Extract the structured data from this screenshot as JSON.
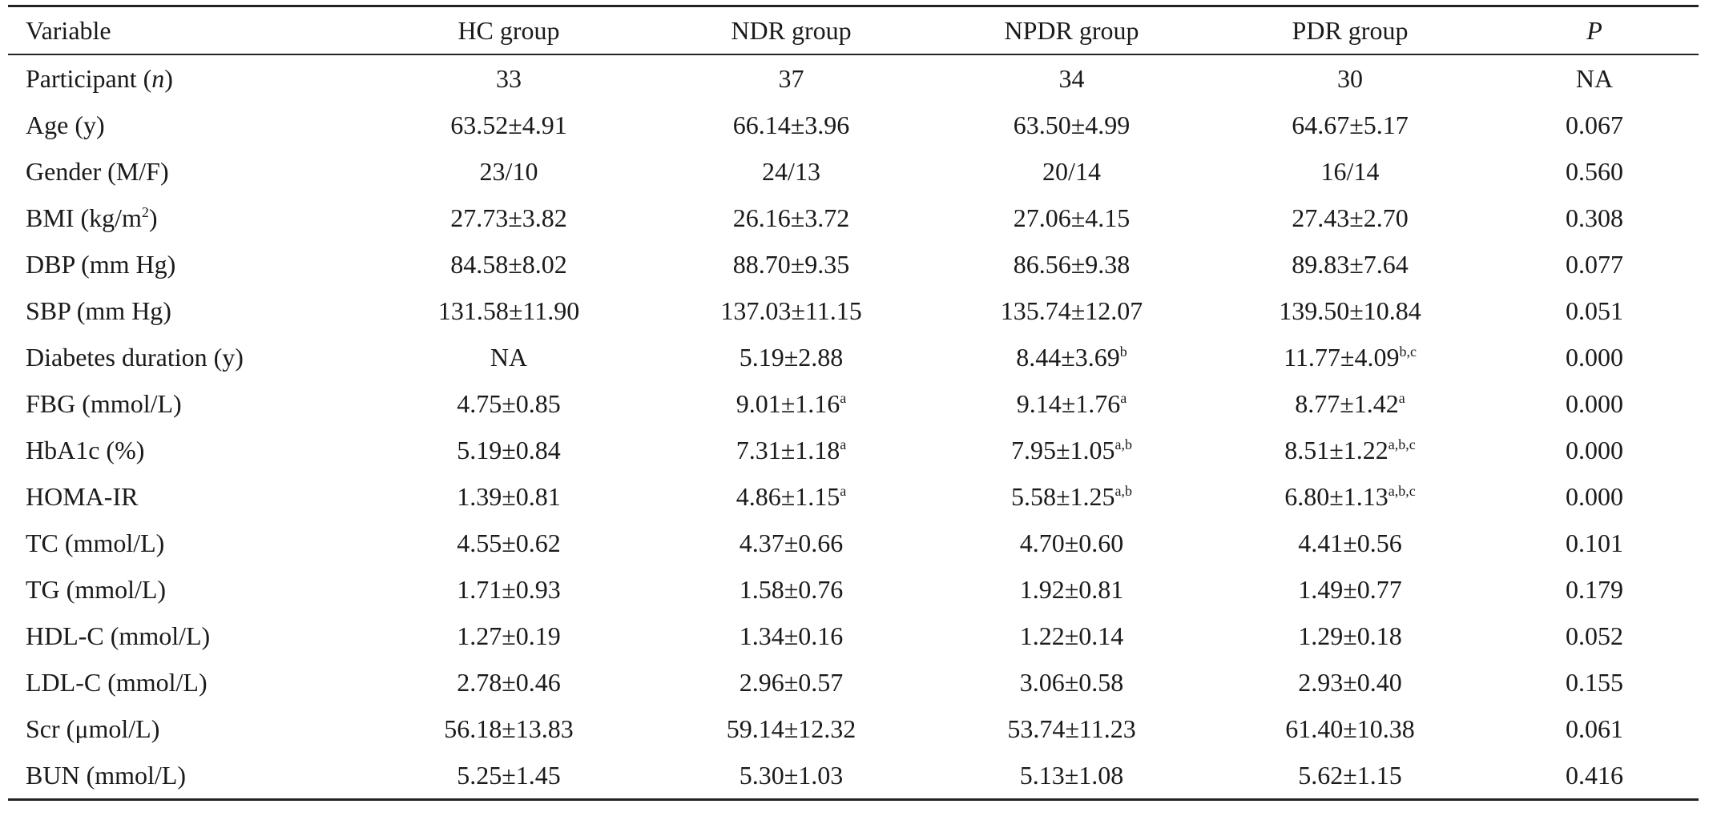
{
  "table": {
    "headers": [
      "Variable",
      "HC group",
      "NDR group",
      "NPDR group",
      "PDR group",
      "P"
    ],
    "rows": [
      {
        "variable": "Participant (",
        "variable_italic": "n",
        "variable_suffix": ")",
        "cells": [
          {
            "v": "33",
            "s": ""
          },
          {
            "v": "37",
            "s": ""
          },
          {
            "v": "34",
            "s": ""
          },
          {
            "v": "30",
            "s": ""
          }
        ],
        "p": "NA"
      },
      {
        "variable": "Age (y)",
        "cells": [
          {
            "v": "63.52±4.91",
            "s": ""
          },
          {
            "v": "66.14±3.96",
            "s": ""
          },
          {
            "v": "63.50±4.99",
            "s": ""
          },
          {
            "v": "64.67±5.17",
            "s": ""
          }
        ],
        "p": "0.067"
      },
      {
        "variable": "Gender (M/F)",
        "cells": [
          {
            "v": "23/10",
            "s": ""
          },
          {
            "v": "24/13",
            "s": ""
          },
          {
            "v": "20/14",
            "s": ""
          },
          {
            "v": "16/14",
            "s": ""
          }
        ],
        "p": "0.560"
      },
      {
        "variable": "BMI (kg/m",
        "variable_sup": "2",
        "variable_suffix": ")",
        "cells": [
          {
            "v": "27.73±3.82",
            "s": ""
          },
          {
            "v": "26.16±3.72",
            "s": ""
          },
          {
            "v": "27.06±4.15",
            "s": ""
          },
          {
            "v": "27.43±2.70",
            "s": ""
          }
        ],
        "p": "0.308"
      },
      {
        "variable": "DBP (mm Hg)",
        "cells": [
          {
            "v": "84.58±8.02",
            "s": ""
          },
          {
            "v": "88.70±9.35",
            "s": ""
          },
          {
            "v": "86.56±9.38",
            "s": ""
          },
          {
            "v": "89.83±7.64",
            "s": ""
          }
        ],
        "p": "0.077"
      },
      {
        "variable": "SBP (mm Hg)",
        "cells": [
          {
            "v": "131.58±11.90",
            "s": ""
          },
          {
            "v": "137.03±11.15",
            "s": ""
          },
          {
            "v": "135.74±12.07",
            "s": ""
          },
          {
            "v": "139.50±10.84",
            "s": ""
          }
        ],
        "p": "0.051"
      },
      {
        "variable": "Diabetes duration (y)",
        "cells": [
          {
            "v": "NA",
            "s": ""
          },
          {
            "v": "5.19±2.88",
            "s": ""
          },
          {
            "v": "8.44±3.69",
            "s": "b"
          },
          {
            "v": "11.77±4.09",
            "s": "b,c"
          }
        ],
        "p": "0.000"
      },
      {
        "variable": "FBG (mmol/L)",
        "cells": [
          {
            "v": "4.75±0.85",
            "s": ""
          },
          {
            "v": "9.01±1.16",
            "s": "a"
          },
          {
            "v": "9.14±1.76",
            "s": "a"
          },
          {
            "v": "8.77±1.42",
            "s": "a"
          }
        ],
        "p": "0.000"
      },
      {
        "variable": "HbA1c (%)",
        "cells": [
          {
            "v": "5.19±0.84",
            "s": ""
          },
          {
            "v": "7.31±1.18",
            "s": "a"
          },
          {
            "v": "7.95±1.05",
            "s": "a,b"
          },
          {
            "v": "8.51±1.22",
            "s": "a,b,c"
          }
        ],
        "p": "0.000"
      },
      {
        "variable": "HOMA-IR",
        "cells": [
          {
            "v": "1.39±0.81",
            "s": ""
          },
          {
            "v": "4.86±1.15",
            "s": "a"
          },
          {
            "v": "5.58±1.25",
            "s": "a,b"
          },
          {
            "v": "6.80±1.13",
            "s": "a,b,c"
          }
        ],
        "p": "0.000"
      },
      {
        "variable": "TC (mmol/L)",
        "cells": [
          {
            "v": "4.55±0.62",
            "s": ""
          },
          {
            "v": "4.37±0.66",
            "s": ""
          },
          {
            "v": "4.70±0.60",
            "s": ""
          },
          {
            "v": "4.41±0.56",
            "s": ""
          }
        ],
        "p": "0.101"
      },
      {
        "variable": "TG (mmol/L)",
        "cells": [
          {
            "v": "1.71±0.93",
            "s": ""
          },
          {
            "v": "1.58±0.76",
            "s": ""
          },
          {
            "v": "1.92±0.81",
            "s": ""
          },
          {
            "v": "1.49±0.77",
            "s": ""
          }
        ],
        "p": "0.179"
      },
      {
        "variable": "HDL-C (mmol/L)",
        "cells": [
          {
            "v": "1.27±0.19",
            "s": ""
          },
          {
            "v": "1.34±0.16",
            "s": ""
          },
          {
            "v": "1.22±0.14",
            "s": ""
          },
          {
            "v": "1.29±0.18",
            "s": ""
          }
        ],
        "p": "0.052"
      },
      {
        "variable": "LDL-C (mmol/L)",
        "cells": [
          {
            "v": "2.78±0.46",
            "s": ""
          },
          {
            "v": "2.96±0.57",
            "s": ""
          },
          {
            "v": "3.06±0.58",
            "s": ""
          },
          {
            "v": "2.93±0.40",
            "s": ""
          }
        ],
        "p": "0.155"
      },
      {
        "variable": "Scr (μmol/L)",
        "cells": [
          {
            "v": "56.18±13.83",
            "s": ""
          },
          {
            "v": "59.14±12.32",
            "s": ""
          },
          {
            "v": "53.74±11.23",
            "s": ""
          },
          {
            "v": "61.40±10.38",
            "s": ""
          }
        ],
        "p": "0.061"
      },
      {
        "variable": "BUN (mmol/L)",
        "cells": [
          {
            "v": "5.25±1.45",
            "s": ""
          },
          {
            "v": "5.30±1.03",
            "s": ""
          },
          {
            "v": "5.13±1.08",
            "s": ""
          },
          {
            "v": "5.62±1.15",
            "s": ""
          }
        ],
        "p": "0.416"
      }
    ]
  }
}
